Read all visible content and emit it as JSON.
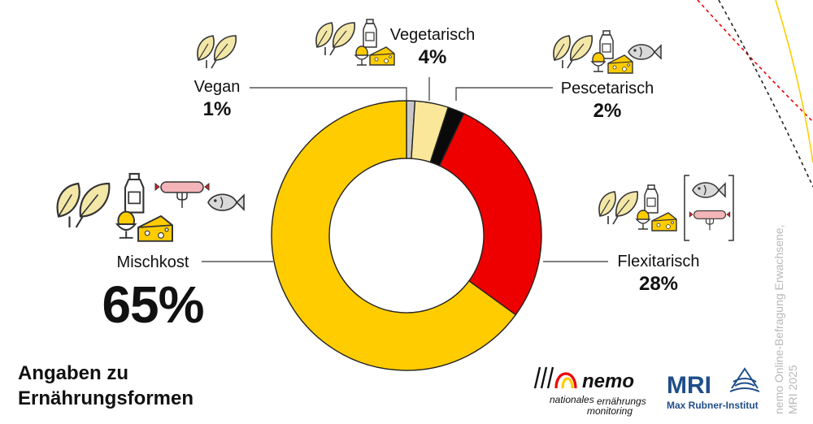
{
  "chart_data": {
    "type": "pie",
    "donut": true,
    "title": "Angaben zu Ernährungsformen",
    "slices": [
      {
        "name": "Vegan",
        "pct_label": "1%",
        "value": 1,
        "color": "#c8c8c8"
      },
      {
        "name": "Vegetarisch",
        "pct_label": "4%",
        "value": 4,
        "color": "#fbe79a"
      },
      {
        "name": "Pescetarisch",
        "pct_label": "2%",
        "value": 2,
        "color": "#0a0a0a"
      },
      {
        "name": "Flexitarisch",
        "pct_label": "28%",
        "value": 28,
        "color": "#ee0000"
      },
      {
        "name": "Mischkost",
        "pct_label": "65%",
        "value": 65,
        "color": "#ffcc00"
      }
    ]
  },
  "title": {
    "line1": "Angaben zu",
    "line2": "Ernährungsformen"
  },
  "source": {
    "line1": "nemo Online-Befragung Erwachsene,",
    "line2": "MRI 2025"
  },
  "logos": {
    "nemo": {
      "word": "nemo",
      "line1": "nationales",
      "line2": "ernährungs",
      "line3": "monitoring"
    },
    "mri": {
      "word": "MRI",
      "sub": "Max Rubner-Institut"
    }
  },
  "colors": {
    "yellow": "#ffcc00",
    "red": "#ee0000",
    "black": "#0a0a0a",
    "pale_yellow": "#fbe79a",
    "grey": "#c8c8c8",
    "leaf": "#f3e7a8",
    "fish": "#d9d9d9",
    "sausage": "#f4b5b8",
    "logo_blue": "#1f4e89"
  },
  "icons": [
    "leaf-icon",
    "milk-bottle-icon",
    "egg-cup-icon",
    "cheese-icon",
    "fish-icon",
    "sausage-fork-icon"
  ]
}
